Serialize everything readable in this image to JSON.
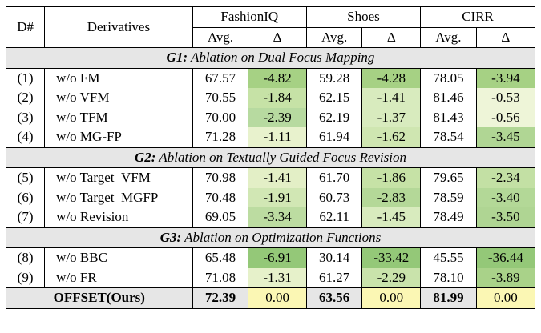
{
  "columns": {
    "d": "D#",
    "derivatives": "Derivatives",
    "datasets": [
      "FashionIQ",
      "Shoes",
      "CIRR"
    ],
    "avg": "Avg.",
    "delta": "Δ"
  },
  "groups": [
    {
      "code": "G1:",
      "title": "Ablation on Dual Focus Mapping",
      "rows": [
        {
          "id": "(1)",
          "name": "w/o FM",
          "values": [
            "67.57",
            "-4.82",
            "59.28",
            "-4.28",
            "78.05",
            "-3.94"
          ],
          "shade": [
            "#a6d184",
            "#a6d184",
            "#a6d184"
          ]
        },
        {
          "id": "(2)",
          "name": "w/o VFM",
          "values": [
            "70.55",
            "-1.84",
            "62.15",
            "-1.41",
            "81.46",
            "-0.53"
          ],
          "shade": [
            "#c6e2a6",
            "#d8ebbe",
            "#eef5d8"
          ]
        },
        {
          "id": "(3)",
          "name": "w/o TFM",
          "values": [
            "70.00",
            "-2.39",
            "62.19",
            "-1.37",
            "81.43",
            "-0.56"
          ],
          "shade": [
            "#b7daa0",
            "#d8ebbe",
            "#eef5d8"
          ]
        },
        {
          "id": "(4)",
          "name": "w/o MG-FP",
          "values": [
            "71.28",
            "-1.11",
            "61.94",
            "-1.62",
            "78.54",
            "-3.45"
          ],
          "shade": [
            "#e8f2cd",
            "#cfe6b1",
            "#b0d694"
          ]
        }
      ]
    },
    {
      "code": "G2:",
      "title": "Ablation on Textually Guided Focus Revision",
      "rows": [
        {
          "id": "(5)",
          "name": "w/o Target_VFM",
          "values": [
            "70.98",
            "-1.41",
            "61.70",
            "-1.86",
            "79.65",
            "-2.34"
          ],
          "shade": [
            "#e3efc6",
            "#c6e2a6",
            "#c3e0a4"
          ]
        },
        {
          "id": "(6)",
          "name": "w/o Target_MGFP",
          "values": [
            "70.48",
            "-1.91",
            "60.73",
            "-2.83",
            "78.59",
            "-3.40"
          ],
          "shade": [
            "#d1e7b4",
            "#b4d898",
            "#b3d897"
          ]
        },
        {
          "id": "(7)",
          "name": "w/o Revision",
          "values": [
            "69.05",
            "-3.34",
            "62.11",
            "-1.45",
            "78.49",
            "-3.50"
          ],
          "shade": [
            "#bcdca1",
            "#d8ebbe",
            "#afd593"
          ]
        }
      ]
    },
    {
      "code": "G3:",
      "title": "Ablation on Optimization Functions",
      "rows": [
        {
          "id": "(8)",
          "name": "w/o BBC",
          "values": [
            "65.48",
            "-6.91",
            "30.14",
            "-33.42",
            "45.55",
            "-36.44"
          ],
          "shade": [
            "#94c878",
            "#94c878",
            "#94c878"
          ]
        },
        {
          "id": "(9)",
          "name": "w/o FR",
          "values": [
            "71.08",
            "-1.31",
            "61.27",
            "-2.29",
            "78.10",
            "-3.89"
          ],
          "shade": [
            "#e6f1ca",
            "#c9e3ab",
            "#a9d289"
          ]
        }
      ]
    }
  ],
  "final": {
    "name": "OFFSET(Ours)",
    "values": [
      "72.39",
      "0.00",
      "63.56",
      "0.00",
      "81.99",
      "0.00"
    ],
    "shade": [
      "#fbf7b4",
      "#fbf7b4",
      "#fbf7b4"
    ]
  }
}
